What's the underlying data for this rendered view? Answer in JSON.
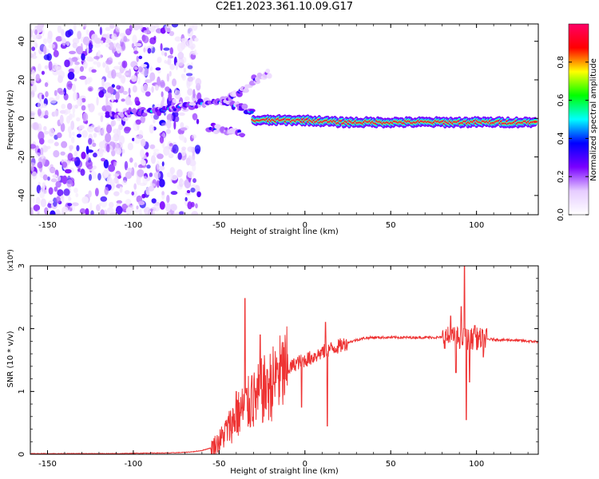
{
  "title": "C2E1.2023.361.10.09.G17",
  "colors": {
    "snr_line": "#ee3333",
    "colormap": [
      "#ffffff",
      "#e6ccff",
      "#7a00ff",
      "#0000ff",
      "#00ffff",
      "#00ff00",
      "#ffff00",
      "#ff0000",
      "#ff0066"
    ]
  },
  "chart_data": [
    {
      "type": "heatmap",
      "xlabel": "Height of straight line (km)",
      "ylabel": "Frequency (Hz)",
      "xlim": [
        -160,
        136
      ],
      "ylim": [
        -50,
        49
      ],
      "x_ticks": [
        -150,
        -100,
        -50,
        0,
        50,
        100
      ],
      "x_tick_labels": [
        "-150",
        "-100",
        "-50",
        "0",
        "50",
        "100"
      ],
      "y_ticks": [
        -40,
        -20,
        0,
        20,
        40
      ],
      "y_tick_labels": [
        "-40",
        "-20",
        "0",
        "20",
        "40"
      ],
      "grid": false,
      "colorbar": {
        "label": "Normalized spectral amplitude",
        "range": [
          0,
          1
        ],
        "ticks": [
          0.0,
          0.2,
          0.4,
          0.6,
          0.8
        ],
        "tick_labels": [
          "0.0",
          "0.2",
          "0.4",
          "0.6",
          "0.8"
        ]
      },
      "noise_region": {
        "x_range": [
          -160,
          -65
        ],
        "level": 0.15
      },
      "features": [
        {
          "x": [
            -115,
            -100,
            -85,
            -70,
            -60,
            -50,
            -40,
            -30
          ],
          "y": [
            2,
            3,
            4,
            6,
            8,
            9,
            7,
            3
          ],
          "amplitude": 0.45
        },
        {
          "x": [
            -45,
            -35,
            -25,
            -20
          ],
          "y": [
            10,
            16,
            22,
            24
          ],
          "amplitude": 0.3
        },
        {
          "x": [
            -55,
            -45,
            -35
          ],
          "y": [
            -5,
            -6,
            -8
          ],
          "amplitude": 0.35
        },
        {
          "x": [
            -30,
            0,
            20,
            50,
            80,
            100,
            135
          ],
          "y": [
            -1,
            -1,
            -2,
            -2,
            -2,
            -2,
            -2
          ],
          "amplitude": 0.95
        }
      ]
    },
    {
      "type": "line",
      "xlabel": "Height of straight line (km)",
      "ylabel": "SNR (10 * v/v)",
      "y_multiplier_label": "(x10⁴)",
      "xlim": [
        -160,
        136
      ],
      "ylim": [
        0,
        3.0
      ],
      "x_ticks": [
        -150,
        -100,
        -50,
        0,
        50,
        100
      ],
      "x_tick_labels": [
        "-150",
        "-100",
        "-50",
        "0",
        "50",
        "100"
      ],
      "y_ticks": [
        0,
        1,
        2,
        3
      ],
      "y_tick_labels": [
        "0",
        "1",
        "2",
        "3"
      ],
      "grid": false,
      "series": [
        {
          "color": "#ee3333",
          "x": [
            -160,
            -150,
            -140,
            -130,
            -120,
            -110,
            -100,
            -90,
            -80,
            -70,
            -65,
            -60,
            -55,
            -50,
            -45,
            -40,
            -35,
            -30,
            -25,
            -20,
            -15,
            -10,
            -5,
            0,
            5,
            10,
            15,
            20,
            25,
            30,
            35,
            40,
            45,
            50,
            55,
            60,
            65,
            70,
            75,
            80,
            85,
            90,
            95,
            100,
            105,
            110,
            115,
            120,
            125,
            130,
            136
          ],
          "y": [
            0.01,
            0.01,
            0.01,
            0.01,
            0.01,
            0.01,
            0.015,
            0.02,
            0.02,
            0.03,
            0.04,
            0.06,
            0.1,
            0.2,
            0.4,
            0.6,
            0.75,
            0.85,
            1.0,
            1.1,
            1.25,
            1.35,
            1.45,
            1.5,
            1.55,
            1.62,
            1.68,
            1.72,
            1.78,
            1.82,
            1.85,
            1.86,
            1.86,
            1.86,
            1.86,
            1.86,
            1.86,
            1.86,
            1.86,
            1.86,
            1.86,
            1.85,
            1.84,
            1.84,
            1.83,
            1.83,
            1.82,
            1.82,
            1.81,
            1.8,
            1.79
          ]
        }
      ],
      "spikes": [
        {
          "x": -46,
          "y": 0.45
        },
        {
          "x": -40,
          "y": 1.0
        },
        {
          "x": -35,
          "y": 2.48
        },
        {
          "x": -31,
          "y": 1.25
        },
        {
          "x": -26,
          "y": 1.9
        },
        {
          "x": -22,
          "y": 1.35
        },
        {
          "x": -16,
          "y": 1.45
        },
        {
          "x": -11,
          "y": 1.2
        },
        {
          "x": -2,
          "y": 0.75
        },
        {
          "x": 6,
          "y": 1.6
        },
        {
          "x": 10,
          "y": 1.7
        },
        {
          "x": 12,
          "y": 2.1
        },
        {
          "x": 13,
          "y": 0.45
        },
        {
          "x": 85,
          "y": 2.2
        },
        {
          "x": 88,
          "y": 1.3
        },
        {
          "x": 91,
          "y": 2.35
        },
        {
          "x": 93,
          "y": 3.0
        },
        {
          "x": 94,
          "y": 0.55
        },
        {
          "x": 96,
          "y": 1.15
        },
        {
          "x": 99,
          "y": 2.05
        },
        {
          "x": 104,
          "y": 1.55
        }
      ]
    }
  ]
}
